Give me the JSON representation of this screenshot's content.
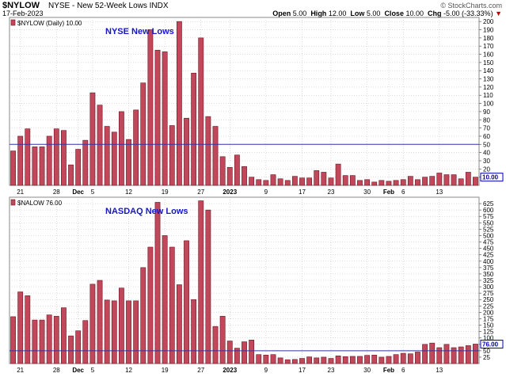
{
  "header": {
    "symbol": "$NYLOW",
    "name": "NYSE - New 52-Week Lows INDX",
    "date": "17-Feb-2023",
    "copyright": "© StockCharts.com",
    "open_label": "Open",
    "open": "5.00",
    "high_label": "High",
    "high": "12.00",
    "low_label": "Low",
    "low": "5.00",
    "close_label": "Close",
    "close": "10.00",
    "chg_label": "Chg",
    "chg": "-5.00 (-33.33%)",
    "chg_arrow": "▼"
  },
  "colors": {
    "bar_fill": "#c0485a",
    "bar_stroke": "#6e1424",
    "ref_line": "#3333aa",
    "title_text": "#1515cc",
    "grid": "#bbbbbb",
    "last_value_box": "#0000aa"
  },
  "x_axis_labels": [
    {
      "label": "21",
      "index": 1
    },
    {
      "label": "28",
      "index": 6
    },
    {
      "label": "Dec",
      "index": 9,
      "bold": true
    },
    {
      "label": "5",
      "index": 11
    },
    {
      "label": "12",
      "index": 16
    },
    {
      "label": "19",
      "index": 21
    },
    {
      "label": "27",
      "index": 26
    },
    {
      "label": "2023",
      "index": 30,
      "bold": true
    },
    {
      "label": "9",
      "index": 35
    },
    {
      "label": "17",
      "index": 40
    },
    {
      "label": "23",
      "index": 44
    },
    {
      "label": "30",
      "index": 49
    },
    {
      "label": "Feb",
      "index": 52,
      "bold": true
    },
    {
      "label": "6",
      "index": 54
    },
    {
      "label": "13",
      "index": 59
    }
  ],
  "chart_data": [
    {
      "type": "bar",
      "title": "NYSE New Lows",
      "legend": "$NYLOW (Daily) 10.00",
      "last_value": "10.00",
      "ylim": [
        0,
        205
      ],
      "yticks": [
        10,
        20,
        30,
        40,
        50,
        60,
        70,
        80,
        90,
        100,
        110,
        120,
        130,
        140,
        150,
        160,
        170,
        180,
        190,
        200
      ],
      "reference_line": 50,
      "values": [
        42,
        60,
        69,
        47,
        47,
        60,
        69,
        67,
        25,
        44,
        55,
        113,
        98,
        72,
        65,
        90,
        56,
        92,
        125,
        190,
        165,
        163,
        73,
        200,
        82,
        137,
        180,
        84,
        72,
        35,
        22,
        37,
        23,
        10,
        7,
        6,
        13,
        8,
        6,
        11,
        9,
        9,
        18,
        16,
        9,
        26,
        12,
        12,
        6,
        7,
        4,
        6,
        5,
        6,
        7,
        11,
        7,
        10,
        11,
        15,
        13,
        13,
        8,
        16,
        10
      ]
    },
    {
      "type": "bar",
      "title": "NASDAQ New Lows",
      "legend": "$NALOW 76.00",
      "last_value": "76.00",
      "ylim": [
        0,
        650
      ],
      "yticks": [
        25,
        50,
        75,
        100,
        125,
        150,
        175,
        200,
        225,
        250,
        275,
        300,
        325,
        350,
        375,
        400,
        425,
        450,
        475,
        500,
        525,
        550,
        575,
        600,
        625
      ],
      "reference_line": 50,
      "values": [
        183,
        280,
        265,
        170,
        170,
        190,
        185,
        218,
        108,
        128,
        168,
        310,
        325,
        248,
        245,
        295,
        245,
        245,
        375,
        455,
        630,
        500,
        455,
        308,
        480,
        250,
        636,
        600,
        145,
        185,
        88,
        60,
        85,
        92,
        35,
        33,
        35,
        22,
        15,
        16,
        20,
        26,
        22,
        25,
        20,
        30,
        27,
        28,
        28,
        32,
        33,
        25,
        28,
        35,
        40,
        38,
        45,
        75,
        80,
        62,
        75,
        62,
        65,
        70,
        76
      ]
    }
  ]
}
